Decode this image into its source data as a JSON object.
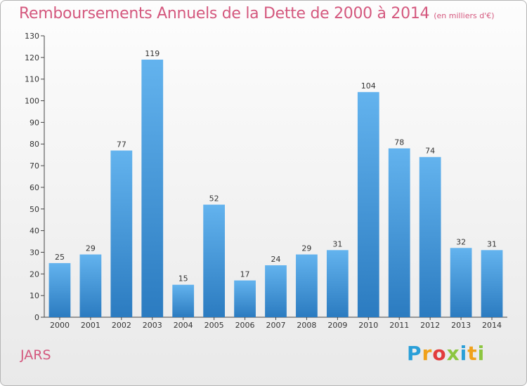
{
  "chart_data": {
    "type": "bar",
    "title": "Remboursements Annuels de la Dette de 2000 à 2014",
    "unit_label": "(en milliers d'€)",
    "categories": [
      "2000",
      "2001",
      "2002",
      "2003",
      "2004",
      "2005",
      "2006",
      "2007",
      "2008",
      "2009",
      "2010",
      "2011",
      "2012",
      "2013",
      "2014"
    ],
    "values": [
      25,
      29,
      77,
      119,
      15,
      52,
      17,
      24,
      29,
      31,
      104,
      78,
      74,
      32,
      31
    ],
    "ylim": [
      0,
      130
    ],
    "yticks": [
      0,
      10,
      20,
      30,
      40,
      50,
      60,
      70,
      80,
      90,
      100,
      110,
      120,
      130
    ],
    "grid": false,
    "bar_color_top": "#63b3ee",
    "bar_color_bottom": "#2b7bc0"
  },
  "footer": {
    "commune": "JARS",
    "logo_letters": [
      "P",
      "r",
      "o",
      "x",
      "i",
      "t",
      "i"
    ],
    "logo_colors": [
      "#2a9fd8",
      "#f0a21b",
      "#e23b3b",
      "#8cc63f",
      "#2a9fd8",
      "#f0a21b",
      "#8cc63f"
    ]
  }
}
